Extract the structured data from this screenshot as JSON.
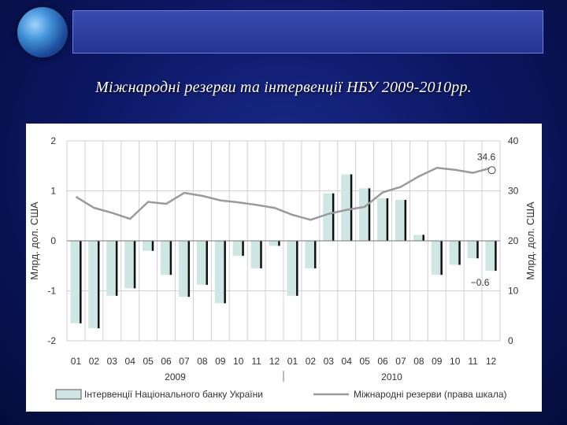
{
  "slide": {
    "title": "Міжнародні резерви та інтервенції НБУ 2009-2010рр."
  },
  "colors": {
    "background": "#0b1660",
    "bar_fill": "#cfe7e4",
    "bar_edge": "#111111",
    "line": "#9a9a9a",
    "grid": "#d0d0d0"
  },
  "chart_data": {
    "type": "bar",
    "ylabel": "Млрд. дол. США",
    "ylabel_right": "Млрд. дол. США",
    "ylim": [
      -2,
      2
    ],
    "ylim_right": [
      0,
      40
    ],
    "yticks": [
      "2",
      "1",
      "0",
      "-1",
      "-2"
    ],
    "yticks_right": [
      "40",
      "30",
      "20",
      "10",
      "0"
    ],
    "categories": [
      "01",
      "02",
      "03",
      "04",
      "05",
      "06",
      "07",
      "08",
      "09",
      "10",
      "11",
      "12",
      "01",
      "02",
      "03",
      "04",
      "05",
      "06",
      "07",
      "08",
      "09",
      "10",
      "11",
      "12"
    ],
    "years": [
      "2009",
      "2010"
    ],
    "series": [
      {
        "name": "Інтервенції Національного банку України",
        "type": "bar",
        "values": [
          -1.65,
          -1.75,
          -1.1,
          -0.95,
          -0.2,
          -0.68,
          -1.12,
          -0.88,
          -1.25,
          -0.3,
          -0.55,
          -0.1,
          -1.1,
          -0.55,
          0.95,
          1.33,
          1.05,
          0.85,
          0.82,
          0.12,
          -0.68,
          -0.48,
          -0.35,
          -0.6
        ]
      },
      {
        "name": "Міжнародні резерви (права шкала)",
        "type": "line",
        "axis": "right",
        "values": [
          28.8,
          26.6,
          25.6,
          24.4,
          27.8,
          27.4,
          29.6,
          29.0,
          28.1,
          27.7,
          27.2,
          26.6,
          25.2,
          24.2,
          25.4,
          26.2,
          26.8,
          29.7,
          30.8,
          32.9,
          34.6,
          34.2,
          33.6,
          34.6
        ]
      }
    ],
    "annotations": [
      "34.6",
      "−0.6"
    ],
    "legend_position": "bottom"
  }
}
